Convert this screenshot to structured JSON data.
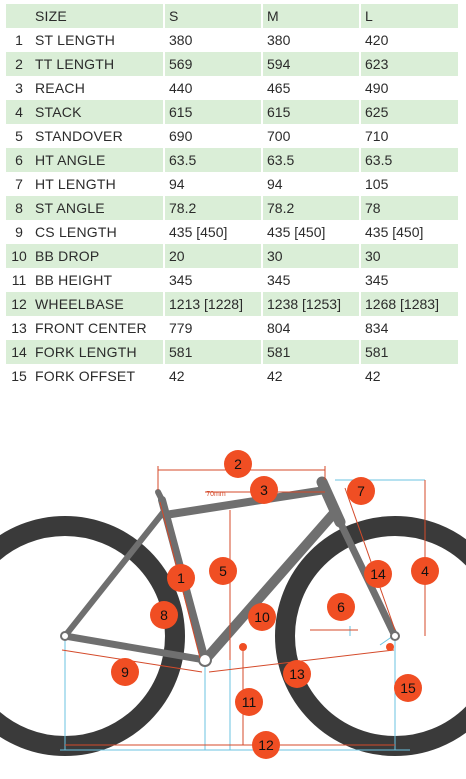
{
  "table": {
    "header": {
      "number": "",
      "label": "SIZE",
      "sizes": [
        "S",
        "M",
        "L"
      ]
    },
    "rows": [
      {
        "number": "1",
        "label": "ST LENGTH",
        "values": [
          "380",
          "380",
          "420"
        ]
      },
      {
        "number": "2",
        "label": "TT LENGTH",
        "values": [
          "569",
          "594",
          "623"
        ]
      },
      {
        "number": "3",
        "label": "REACH",
        "values": [
          "440",
          "465",
          "490"
        ]
      },
      {
        "number": "4",
        "label": "STACK",
        "values": [
          "615",
          "615",
          "625"
        ]
      },
      {
        "number": "5",
        "label": "STANDOVER",
        "values": [
          "690",
          "700",
          "710"
        ]
      },
      {
        "number": "6",
        "label": "HT ANGLE",
        "values": [
          "63.5",
          "63.5",
          "63.5"
        ]
      },
      {
        "number": "7",
        "label": "HT LENGTH",
        "values": [
          "94",
          "94",
          "105"
        ]
      },
      {
        "number": "8",
        "label": "ST ANGLE",
        "values": [
          "78.2",
          "78.2",
          "78"
        ]
      },
      {
        "number": "9",
        "label": "CS LENGTH",
        "values": [
          "435 [450]",
          "435 [450]",
          "435 [450]"
        ]
      },
      {
        "number": "10",
        "label": "BB DROP",
        "values": [
          "20",
          "30",
          "30"
        ]
      },
      {
        "number": "11",
        "label": "BB HEIGHT",
        "values": [
          "345",
          "345",
          "345"
        ]
      },
      {
        "number": "12",
        "label": "WHEELBASE",
        "values": [
          "1213 [1228]",
          "1238 [1253]",
          "1268 [1283]"
        ]
      },
      {
        "number": "13",
        "label": "FRONT CENTER",
        "values": [
          "779",
          "804",
          "834"
        ]
      },
      {
        "number": "14",
        "label": "FORK LENGTH",
        "values": [
          "581",
          "581",
          "581"
        ]
      },
      {
        "number": "15",
        "label": "FORK OFFSET",
        "values": [
          "42",
          "42",
          "42"
        ]
      }
    ]
  },
  "diagram": {
    "standover_offset_label": "70mm",
    "callouts": [
      "1",
      "2",
      "3",
      "4",
      "5",
      "6",
      "7",
      "8",
      "9",
      "10",
      "11",
      "12",
      "13",
      "14",
      "15"
    ],
    "colors": {
      "table_stripe": "#daeed7",
      "callout_fill": "#f04e23",
      "dimension_line": "#d44a2a",
      "guide_line": "#6bc3e0",
      "frame": "#6f6f6f",
      "tire": "#3a3a3a"
    }
  }
}
